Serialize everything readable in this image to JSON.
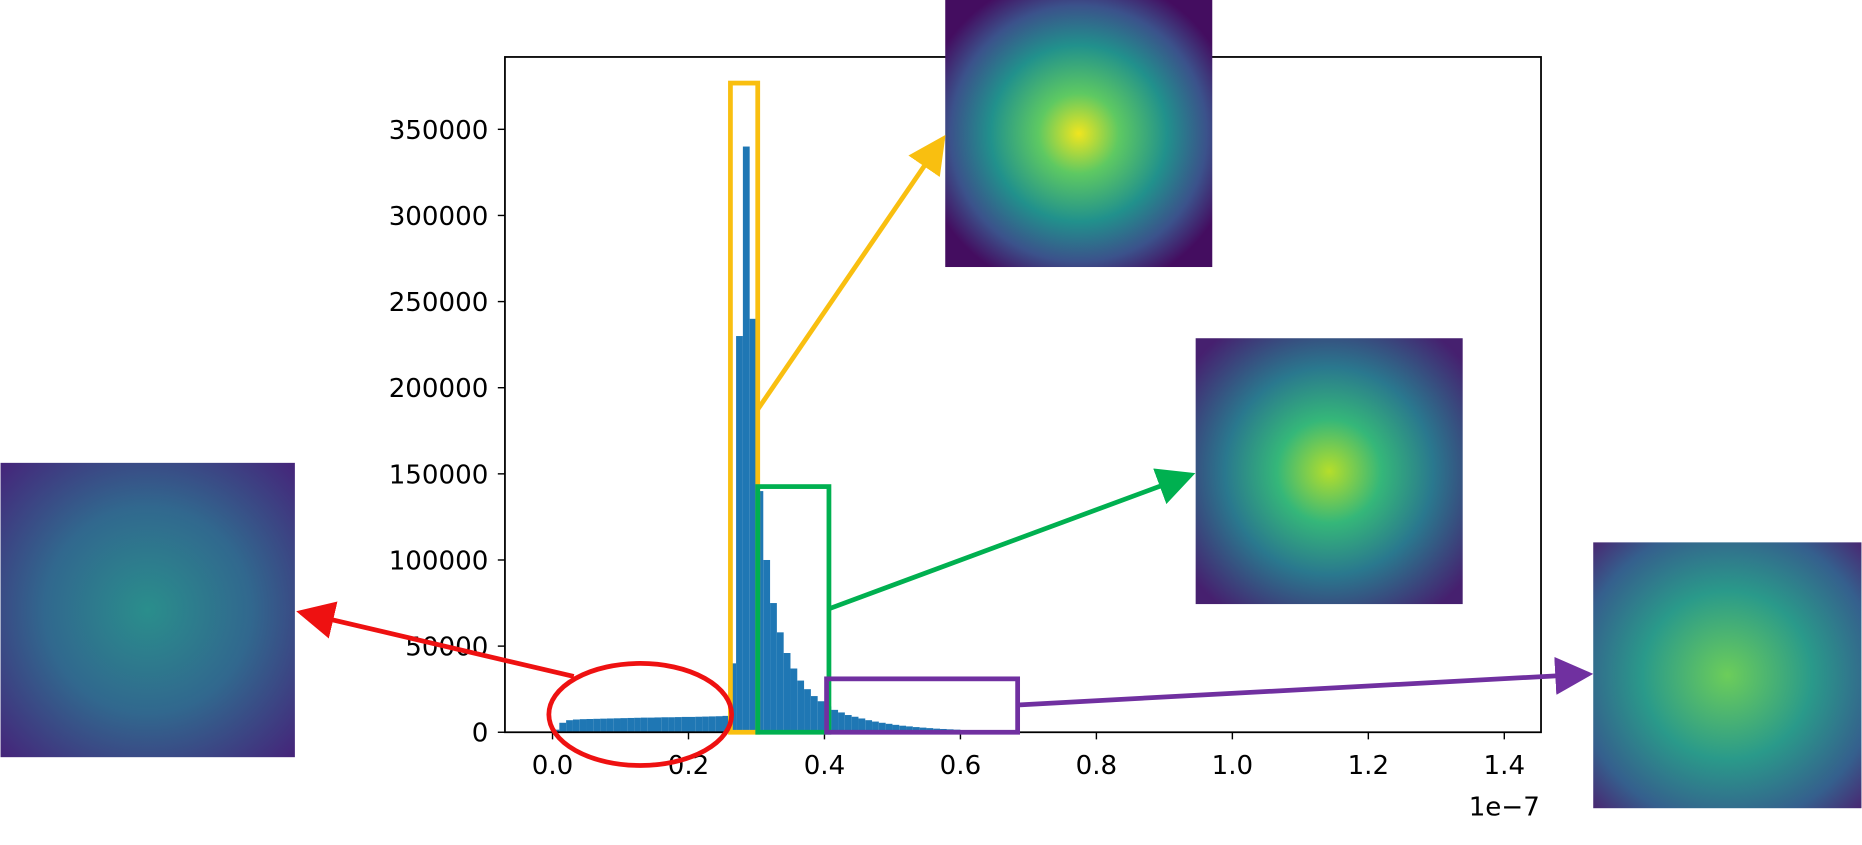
{
  "chart_data": {
    "type": "histogram",
    "x_offset_label": "1e−7",
    "color": "#1f77b4",
    "bins": [
      0.0,
      0.01,
      0.02,
      0.03,
      0.04,
      0.05,
      0.06,
      0.07,
      0.08,
      0.09,
      0.1,
      0.11,
      0.12,
      0.13,
      0.14,
      0.15,
      0.16,
      0.17,
      0.18,
      0.19,
      0.2,
      0.21,
      0.22,
      0.23,
      0.24,
      0.25,
      0.26,
      0.27,
      0.28,
      0.29,
      0.3,
      0.31,
      0.32,
      0.33,
      0.34,
      0.35,
      0.36,
      0.37,
      0.38,
      0.39,
      0.4,
      0.41,
      0.42,
      0.43,
      0.44,
      0.45,
      0.46,
      0.47,
      0.48,
      0.49,
      0.5,
      0.51,
      0.52,
      0.53,
      0.54,
      0.55,
      0.56,
      0.57,
      0.58,
      0.59,
      0.6,
      0.61,
      0.62,
      0.63,
      0.64,
      0.65,
      0.66,
      0.67,
      0.68,
      0.69,
      0.7
    ],
    "values": [
      1500,
      5500,
      7000,
      7400,
      7600,
      7700,
      7800,
      7900,
      8000,
      8100,
      8200,
      8300,
      8400,
      8500,
      8500,
      8600,
      8700,
      8700,
      8800,
      8900,
      8900,
      9000,
      9100,
      9200,
      9300,
      9500,
      40000,
      230000,
      340000,
      240000,
      140000,
      100000,
      75000,
      58000,
      46000,
      37000,
      30000,
      25000,
      21000,
      18000,
      15000,
      13000,
      11500,
      10000,
      9000,
      8000,
      7000,
      6200,
      5500,
      4900,
      4300,
      3800,
      3400,
      3000,
      2700,
      2400,
      2100,
      1900,
      1700,
      1500,
      1300,
      1100,
      1000,
      850,
      700,
      600,
      500,
      400,
      300,
      200
    ],
    "xlim": [
      -0.07,
      1.454
    ],
    "xticks": [
      {
        "value": 0,
        "label": "0.0"
      },
      0.2,
      0.4,
      0.6,
      0.8,
      {
        "value": 1,
        "label": "1.0"
      },
      1.2,
      1.4
    ],
    "ylim": [
      0,
      392000
    ],
    "yticks": [
      0,
      50000,
      100000,
      150000,
      200000,
      250000,
      300000,
      350000
    ]
  }
}
